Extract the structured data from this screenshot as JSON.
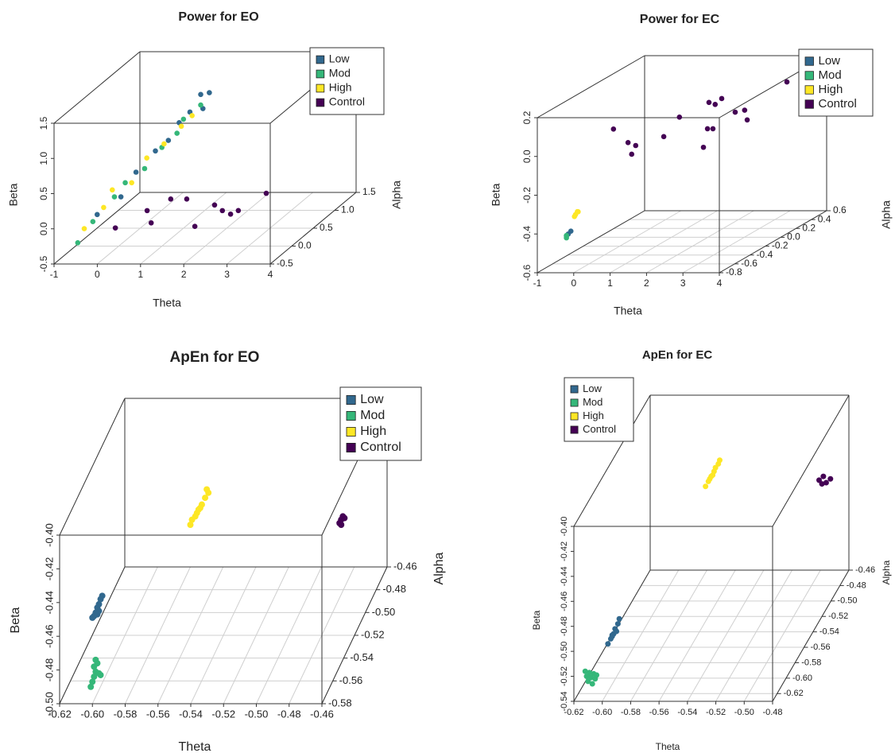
{
  "chart_data": [
    {
      "type": "scatter3d",
      "title": "Power for EO",
      "xlabel": "Theta",
      "ylabel": "Alpha",
      "zlabel": "Beta",
      "xlim": [
        -1,
        4
      ],
      "xticks": [
        -1,
        0,
        1,
        2,
        3,
        4
      ],
      "ylim": [
        -0.5,
        1.5
      ],
      "yticks": [
        -0.5,
        {
          "value": 0,
          "label": "0.0"
        },
        0.5,
        {
          "value": 1,
          "label": "1.0"
        },
        1.5
      ],
      "zlim": [
        -0.5,
        1.5
      ],
      "zticks": [
        -0.5,
        {
          "value": 0,
          "label": "0.0"
        },
        0.5,
        {
          "value": 1,
          "label": "1.0"
        },
        1.5
      ],
      "grid": true,
      "legend": "topright",
      "series": [
        {
          "name": "Low",
          "color": "#31688e",
          "x": [
            -0.3,
            0.05,
            0.3,
            0.55,
            0.85,
            1.0,
            1.15,
            1.45,
            1.3,
            1.45
          ],
          "y": [
            -0.2,
            0.0,
            0.1,
            0.3,
            0.3,
            0.4,
            0.5,
            0.5,
            0.6,
            0.65
          ],
          "z": [
            0.05,
            0.2,
            0.5,
            0.7,
            0.85,
            1.05,
            1.15,
            1.2,
            1.35,
            1.35
          ]
        },
        {
          "name": "Mod",
          "color": "#35b779",
          "x": [
            -0.65,
            -0.4,
            -0.1,
            0.15,
            0.4,
            0.7,
            0.95,
            1.1,
            1.3
          ],
          "y": [
            -0.3,
            -0.2,
            0.0,
            0.0,
            0.2,
            0.3,
            0.4,
            0.4,
            0.6
          ],
          "z": [
            -0.3,
            -0.05,
            0.2,
            0.4,
            0.5,
            0.75,
            0.9,
            1.1,
            1.2
          ]
        },
        {
          "name": "High",
          "color": "#fde725",
          "x": [
            -0.5,
            -0.25,
            -0.05,
            0.2,
            0.45,
            0.75,
            1.05,
            1.2
          ],
          "y": [
            -0.3,
            -0.1,
            -0.1,
            0.1,
            0.2,
            0.3,
            0.4,
            0.5
          ],
          "z": [
            -0.1,
            0.1,
            0.35,
            0.35,
            0.65,
            0.8,
            1.0,
            1.1
          ]
        },
        {
          "name": "Control",
          "color": "#440154",
          "x": [
            0.12,
            0.16,
            0.75,
            0.21,
            0.58,
            1.76,
            1.72,
            1.9,
            2.09,
            2.17,
            2.22
          ],
          "y": [
            -0.2,
            0.5,
            0.0,
            1.0,
            1.0,
            0.0,
            0.5,
            0.5,
            0.5,
            0.6,
            1.2
          ],
          "z": [
            -0.14,
            -0.25,
            -0.17,
            -0.34,
            -0.34,
            -0.22,
            -0.17,
            -0.25,
            -0.3,
            -0.3,
            -0.36
          ]
        }
      ]
    },
    {
      "type": "scatter3d",
      "title": "Power for EC",
      "xlabel": "Theta",
      "ylabel": "Alpha",
      "zlabel": "Beta",
      "xlim": [
        -1,
        4
      ],
      "xticks": [
        -1,
        0,
        1,
        2,
        3,
        4
      ],
      "ylim": [
        -0.8,
        0.6
      ],
      "yticks": [
        -0.8,
        -0.6,
        -0.4,
        -0.2,
        {
          "value": 0,
          "label": "0.0"
        },
        0.2,
        0.4,
        0.6
      ],
      "zlim": [
        -0.6,
        0.2
      ],
      "zticks": [
        -0.6,
        -0.4,
        -0.2,
        {
          "value": 0,
          "label": "0.0"
        },
        0.2
      ],
      "grid": true,
      "legend": "topright",
      "series": [
        {
          "name": "Low",
          "color": "#31688e",
          "x": [
            -0.15,
            -0.2,
            -0.12
          ],
          "y": [
            -0.8,
            -0.8,
            -0.78
          ],
          "z": [
            -0.4,
            -0.41,
            -0.39
          ]
        },
        {
          "name": "Mod",
          "color": "#35b779",
          "x": [
            -0.2,
            -0.22
          ],
          "y": [
            -0.8,
            -0.79
          ],
          "z": [
            -0.42,
            -0.41
          ]
        },
        {
          "name": "High",
          "color": "#fde725",
          "x": [
            0.05,
            0.1,
            0.02,
            0.08
          ],
          "y": [
            -0.8,
            -0.8,
            -0.8,
            -0.78
          ],
          "z": [
            -0.3,
            -0.285,
            -0.31,
            -0.29
          ]
        },
        {
          "name": "Control",
          "color": "#440154",
          "x": [
            0.25,
            0.65,
            0.86,
            0.75,
            1.21,
            1.22,
            2.3,
            1.99,
            2.14,
            1.61,
            1.96,
            1.78,
            2.33,
            2.59,
            2.66,
            3.33
          ],
          "y": [
            -0.4,
            -0.4,
            -0.4,
            -0.4,
            -0.2,
            0.0,
            -0.2,
            0.0,
            0.0,
            0.2,
            0.2,
            0.2,
            0.2,
            0.2,
            0.2,
            0.4
          ],
          "z": [
            0.05,
            -0.02,
            -0.035,
            -0.08,
            -0.035,
            0.02,
            -0.09,
            -0.04,
            -0.04,
            0.05,
            0.07,
            0.04,
            0.0,
            0.01,
            -0.04,
            0.11
          ]
        }
      ]
    },
    {
      "type": "scatter3d",
      "title": "ApEn for EO",
      "xlabel": "Theta",
      "ylabel": "Alpha",
      "zlabel": "Beta",
      "xlim": [
        -0.62,
        -0.46
      ],
      "xticks": [
        -0.62,
        {
          "value": -0.6,
          "label": "-0.60"
        },
        -0.58,
        -0.56,
        -0.54,
        -0.52,
        {
          "value": -0.5,
          "label": "-0.50"
        },
        -0.48,
        -0.46
      ],
      "ylim": [
        -0.58,
        -0.46
      ],
      "yticks": [
        -0.58,
        -0.56,
        -0.54,
        -0.52,
        {
          "value": -0.5,
          "label": "-0.50"
        },
        -0.48,
        -0.46
      ],
      "zlim": [
        -0.5,
        -0.4
      ],
      "zticks": [
        {
          "value": -0.5,
          "label": "-0.50"
        },
        -0.48,
        -0.46,
        -0.44,
        -0.42,
        {
          "value": -0.4,
          "label": "-0.40"
        }
      ],
      "grid": true,
      "legend": "topright",
      "series": [
        {
          "name": "Low",
          "color": "#31688e",
          "x": [
            -0.594,
            -0.595,
            -0.596,
            -0.597,
            -0.596,
            -0.598,
            -0.599,
            -0.6,
            -0.597
          ],
          "y": [
            -0.58,
            -0.58,
            -0.58,
            -0.58,
            -0.58,
            -0.58,
            -0.58,
            -0.58,
            -0.58
          ],
          "z": [
            -0.436,
            -0.438,
            -0.441,
            -0.443,
            -0.445,
            -0.446,
            -0.448,
            -0.449,
            -0.447
          ]
        },
        {
          "name": "Mod",
          "color": "#35b779",
          "x": [
            -0.598,
            -0.597,
            -0.599,
            -0.598,
            -0.595,
            -0.599,
            -0.6,
            -0.601,
            -0.596
          ],
          "y": [
            -0.58,
            -0.58,
            -0.58,
            -0.58,
            -0.58,
            -0.58,
            -0.58,
            -0.58,
            -0.58
          ],
          "z": [
            -0.474,
            -0.476,
            -0.478,
            -0.481,
            -0.483,
            -0.484,
            -0.487,
            -0.49,
            -0.482
          ]
        },
        {
          "name": "High",
          "color": "#fde725",
          "x": [
            -0.57,
            -0.569,
            -0.571,
            -0.573,
            -0.574,
            -0.576,
            -0.577,
            -0.579,
            -0.58,
            -0.575
          ],
          "y": [
            -0.46,
            -0.46,
            -0.46,
            -0.46,
            -0.46,
            -0.46,
            -0.46,
            -0.46,
            -0.46,
            -0.46
          ],
          "z": [
            -0.454,
            -0.456,
            -0.459,
            -0.463,
            -0.465,
            -0.468,
            -0.47,
            -0.472,
            -0.475,
            -0.466
          ]
        },
        {
          "name": "Control",
          "color": "#440154",
          "x": [
            -0.488,
            -0.487,
            -0.486,
            -0.489,
            -0.488
          ],
          "y": [
            -0.46,
            -0.46,
            -0.46,
            -0.46,
            -0.46
          ],
          "z": [
            -0.472,
            -0.47,
            -0.471,
            -0.474,
            -0.475
          ]
        }
      ]
    },
    {
      "type": "scatter3d",
      "title": "ApEn for EC",
      "xlabel": "Theta",
      "ylabel": "Alpha",
      "zlabel": "Beta",
      "xlim": [
        -0.62,
        -0.48
      ],
      "xticks": [
        -0.62,
        {
          "value": -0.6,
          "label": "-0.60"
        },
        -0.58,
        -0.56,
        -0.54,
        -0.52,
        {
          "value": -0.5,
          "label": "-0.50"
        },
        -0.48
      ],
      "ylim": [
        -0.63,
        -0.46
      ],
      "yticks": [
        -0.62,
        {
          "value": -0.6,
          "label": "-0.60"
        },
        -0.58,
        -0.56,
        -0.54,
        -0.52,
        {
          "value": -0.5,
          "label": "-0.50"
        },
        -0.48,
        -0.46
      ],
      "zlim": [
        -0.54,
        -0.4
      ],
      "zticks": [
        -0.54,
        -0.52,
        {
          "value": -0.5,
          "label": "-0.50"
        },
        -0.48,
        -0.46,
        -0.44,
        -0.42,
        {
          "value": -0.4,
          "label": "-0.40"
        }
      ],
      "grid": true,
      "legend": "topleft",
      "series": [
        {
          "name": "Low",
          "color": "#31688e",
          "x": [
            -0.588,
            -0.589,
            -0.591,
            -0.59,
            -0.592,
            -0.593,
            -0.594,
            -0.596,
            -0.593
          ],
          "y": [
            -0.63,
            -0.63,
            -0.63,
            -0.63,
            -0.63,
            -0.63,
            -0.63,
            -0.63,
            -0.63
          ],
          "z": [
            -0.474,
            -0.478,
            -0.482,
            -0.484,
            -0.486,
            -0.488,
            -0.49,
            -0.494,
            -0.487
          ]
        },
        {
          "name": "Mod",
          "color": "#35b779",
          "x": [
            -0.612,
            -0.609,
            -0.606,
            -0.611,
            -0.608,
            -0.605,
            -0.61,
            -0.607,
            -0.604
          ],
          "y": [
            -0.63,
            -0.63,
            -0.63,
            -0.63,
            -0.63,
            -0.63,
            -0.63,
            -0.63,
            -0.63
          ],
          "z": [
            -0.516,
            -0.517,
            -0.518,
            -0.52,
            -0.521,
            -0.522,
            -0.524,
            -0.526,
            -0.519
          ]
        },
        {
          "name": "High",
          "color": "#fde725",
          "x": [
            -0.571,
            -0.572,
            -0.574,
            -0.575,
            -0.576,
            -0.578,
            -0.579,
            -0.581,
            -0.577
          ],
          "y": [
            -0.46,
            -0.46,
            -0.46,
            -0.46,
            -0.46,
            -0.46,
            -0.46,
            -0.46,
            -0.46
          ],
          "z": [
            -0.452,
            -0.455,
            -0.458,
            -0.461,
            -0.464,
            -0.467,
            -0.469,
            -0.473,
            -0.465
          ]
        },
        {
          "name": "Control",
          "color": "#440154",
          "x": [
            -0.501,
            -0.499,
            -0.496,
            -0.493,
            -0.498
          ],
          "y": [
            -0.46,
            -0.46,
            -0.46,
            -0.46,
            -0.46
          ],
          "z": [
            -0.468,
            -0.471,
            -0.47,
            -0.467,
            -0.465
          ]
        }
      ]
    }
  ]
}
